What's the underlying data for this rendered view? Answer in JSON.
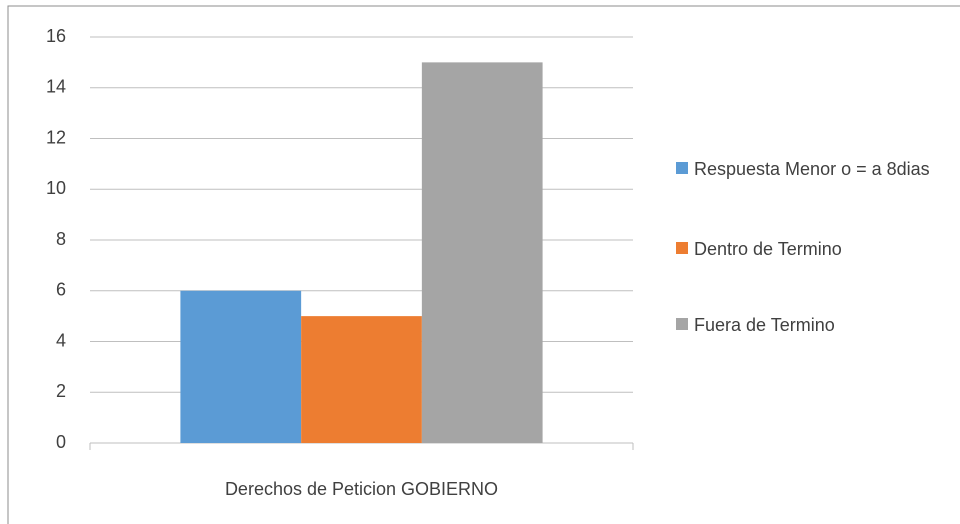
{
  "chart_data": {
    "type": "bar",
    "categories": [
      "Derechos de Peticion GOBIERNO"
    ],
    "series": [
      {
        "name": "Respuesta Menor o = a 8dias",
        "color": "#5b9bd5",
        "values": [
          6
        ]
      },
      {
        "name": "Dentro de Termino",
        "color": "#ed7d31",
        "values": [
          5
        ]
      },
      {
        "name": "Fuera de Termino",
        "color": "#a5a5a5",
        "values": [
          15
        ]
      }
    ],
    "ylim": [
      0,
      16
    ],
    "yticks": [
      0,
      2,
      4,
      6,
      8,
      10,
      12,
      14,
      16
    ],
    "grid": true,
    "legend": "right"
  }
}
